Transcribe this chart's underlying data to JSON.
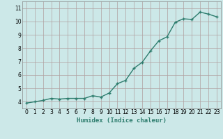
{
  "x": [
    0,
    1,
    2,
    3,
    4,
    5,
    6,
    7,
    8,
    9,
    10,
    11,
    12,
    13,
    14,
    15,
    16,
    17,
    18,
    19,
    20,
    21,
    22,
    23
  ],
  "y": [
    3.9,
    4.0,
    4.1,
    4.25,
    4.2,
    4.25,
    4.25,
    4.25,
    4.45,
    4.35,
    4.65,
    5.35,
    5.6,
    6.5,
    6.95,
    7.8,
    8.55,
    8.85,
    9.95,
    10.2,
    10.15,
    10.7,
    10.55,
    10.35
  ],
  "line_color": "#2e7d6e",
  "marker": "+",
  "marker_size": 3,
  "bg_color": "#cce8e8",
  "grid_color": "#b0a0a0",
  "xlabel": "Humidex (Indice chaleur)",
  "xlim": [
    -0.5,
    23.5
  ],
  "ylim": [
    3.5,
    11.5
  ],
  "yticks": [
    4,
    5,
    6,
    7,
    8,
    9,
    10,
    11
  ],
  "xlabel_fontsize": 6.5,
  "tick_fontsize": 5.5,
  "line_width": 1.0
}
